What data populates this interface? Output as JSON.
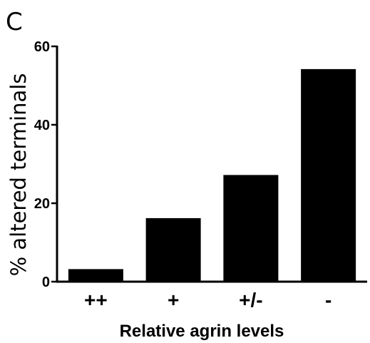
{
  "panel_label": "C",
  "chart_data": {
    "type": "bar",
    "categories": [
      "++",
      "+",
      "+/-",
      "-"
    ],
    "values": [
      3.2,
      16.2,
      27.2,
      54.2
    ],
    "title": "",
    "xlabel": "Relative agrin levels",
    "ylabel": "% altered terminals",
    "ylim": [
      0,
      60
    ],
    "yticks": [
      0,
      20,
      40,
      60
    ],
    "grid": false,
    "bar_color": "#000000"
  }
}
